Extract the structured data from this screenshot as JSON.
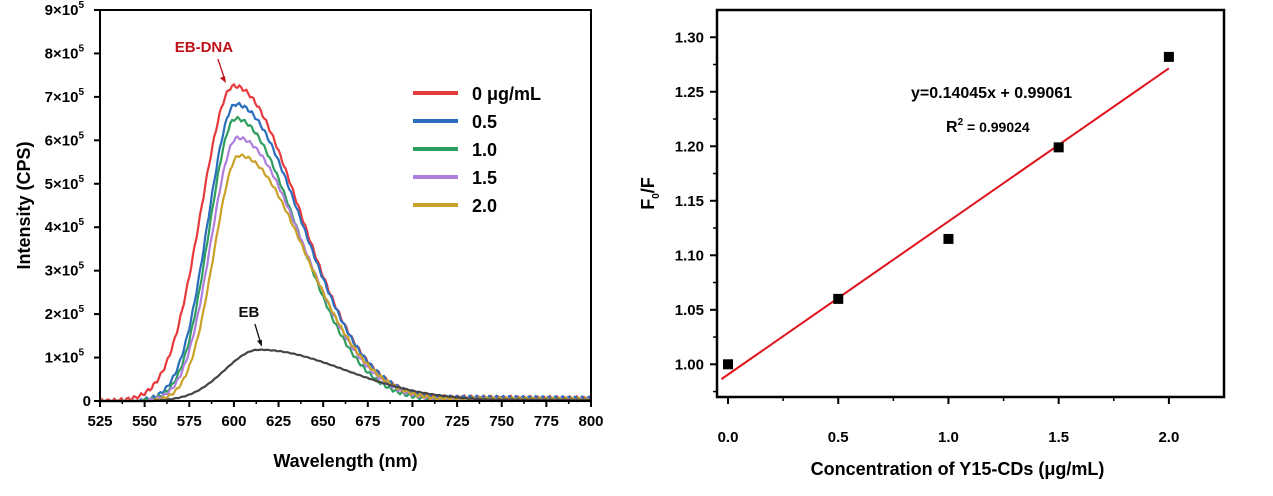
{
  "chart_data": [
    {
      "type": "line",
      "title": "",
      "xlabel": "Wavelength (nm)",
      "ylabel": "Intensity (CPS)",
      "xlim": [
        525,
        800
      ],
      "ylim": [
        0,
        900000
      ],
      "x_ticks": [
        "525",
        "550",
        "575",
        "600",
        "625",
        "650",
        "675",
        "700",
        "725",
        "750",
        "775",
        "800"
      ],
      "y_ticks": [
        {
          "mant": "0",
          "exp": ""
        },
        {
          "mant": "1×10",
          "exp": "5"
        },
        {
          "mant": "2×10",
          "exp": "5"
        },
        {
          "mant": "3×10",
          "exp": "5"
        },
        {
          "mant": "4×10",
          "exp": "5"
        },
        {
          "mant": "5×10",
          "exp": "5"
        },
        {
          "mant": "6×10",
          "exp": "5"
        },
        {
          "mant": "7×10",
          "exp": "5"
        },
        {
          "mant": "8×10",
          "exp": "5"
        },
        {
          "mant": "9×10",
          "exp": "5"
        }
      ],
      "legend_position": "top-right",
      "series": [
        {
          "name": "0  μg/mL",
          "color": "#e8393c",
          "start": 525,
          "peak_x": 600,
          "peak": 725000,
          "left_w": 26,
          "right_w": 52,
          "baseline_end": 12000
        },
        {
          "name": "0.5",
          "color": "#2a6ebd",
          "start": 548,
          "peak_x": 601,
          "peak": 683000,
          "left_w": 22,
          "right_w": 52,
          "baseline_end": 12000
        },
        {
          "name": "1.0",
          "color": "#2e9e5e",
          "start": 549,
          "peak_x": 601,
          "peak": 650000,
          "left_w": 21,
          "right_w": 49,
          "baseline_end": 0
        },
        {
          "name": "1.5",
          "color": "#b07fde",
          "start": 552,
          "peak_x": 602,
          "peak": 606000,
          "left_w": 21,
          "right_w": 51,
          "baseline_end": 6000
        },
        {
          "name": "2.0",
          "color": "#c9a227",
          "start": 556,
          "peak_x": 603,
          "peak": 565000,
          "left_w": 20,
          "right_w": 52,
          "baseline_end": 8000
        },
        {
          "name": "",
          "color": "#454545",
          "start": 556,
          "peak_x": 614,
          "peak": 118000,
          "left_w": 27,
          "right_w": 68,
          "baseline_end": 5000
        }
      ],
      "annotations": [
        {
          "text": "EB-DNA",
          "color": "#c0111a",
          "x": 600,
          "y": 725000
        },
        {
          "text": "EB",
          "color": "#111111",
          "x": 614,
          "y": 118000
        }
      ]
    },
    {
      "type": "scatter",
      "title": "",
      "xlabel": "Concentration of Y15-CDs (μg/mL)",
      "ylabel": "F0/F",
      "ylabel_main": "F",
      "ylabel_sub": "0",
      "ylabel_tail": "/F",
      "xlim": [
        -0.05,
        2.25
      ],
      "ylim": [
        0.97,
        1.325
      ],
      "x_ticks": [
        "0.0",
        "0.5",
        "1.0",
        "1.5",
        "2.0"
      ],
      "y_ticks": [
        "1.00",
        "1.05",
        "1.10",
        "1.15",
        "1.20",
        "1.25",
        "1.30"
      ],
      "points": [
        {
          "x": 0.0,
          "y": 1.0
        },
        {
          "x": 0.5,
          "y": 1.06
        },
        {
          "x": 1.0,
          "y": 1.115
        },
        {
          "x": 1.5,
          "y": 1.199
        },
        {
          "x": 2.0,
          "y": 1.282
        }
      ],
      "fit": {
        "slope": 0.14045,
        "intercept": 0.99061,
        "r2": 0.99024,
        "color": "#e0121b",
        "x_range": [
          -0.03,
          2.0
        ]
      },
      "equation": "y=0.14045x + 0.99061",
      "r2_label": "R",
      "r2_exp": "2",
      "r2_value": " = 0.99024"
    }
  ]
}
